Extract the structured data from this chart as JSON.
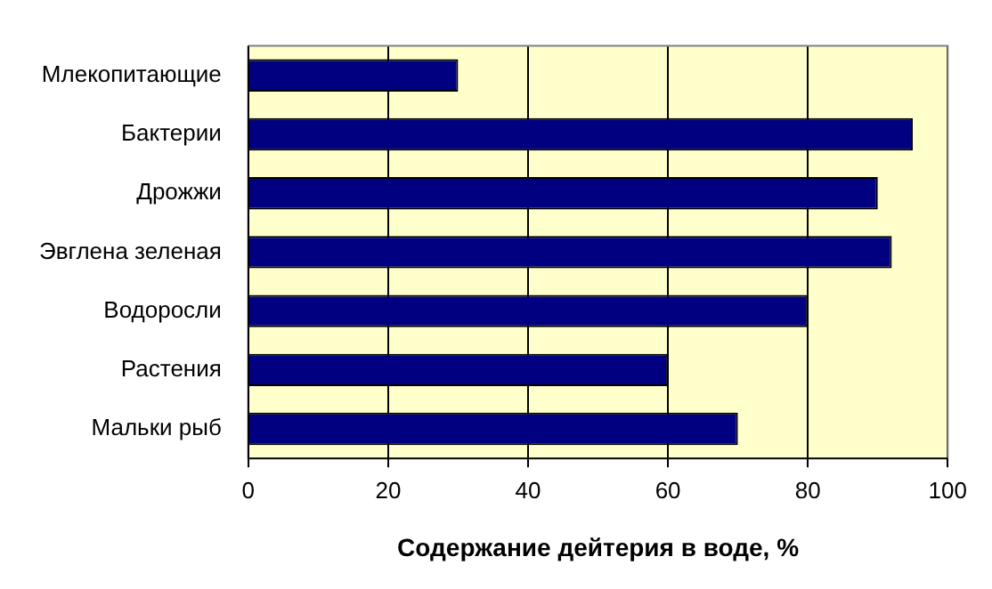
{
  "chart_data": {
    "type": "bar",
    "orientation": "horizontal",
    "xlabel": "Содержание дейтерия в воде, %",
    "categories": [
      "Млекопитающие",
      "Бактерии",
      "Дрожжи",
      "Эвглена зеленая",
      "Водоросли",
      "Растения",
      "Мальки рыб"
    ],
    "values": [
      30,
      95,
      90,
      92,
      80,
      60,
      70
    ],
    "color": "#000080",
    "xlim": [
      0,
      100
    ],
    "xticks": [
      0,
      20,
      40,
      60,
      80,
      100
    ],
    "grid": "x",
    "legend": false
  }
}
